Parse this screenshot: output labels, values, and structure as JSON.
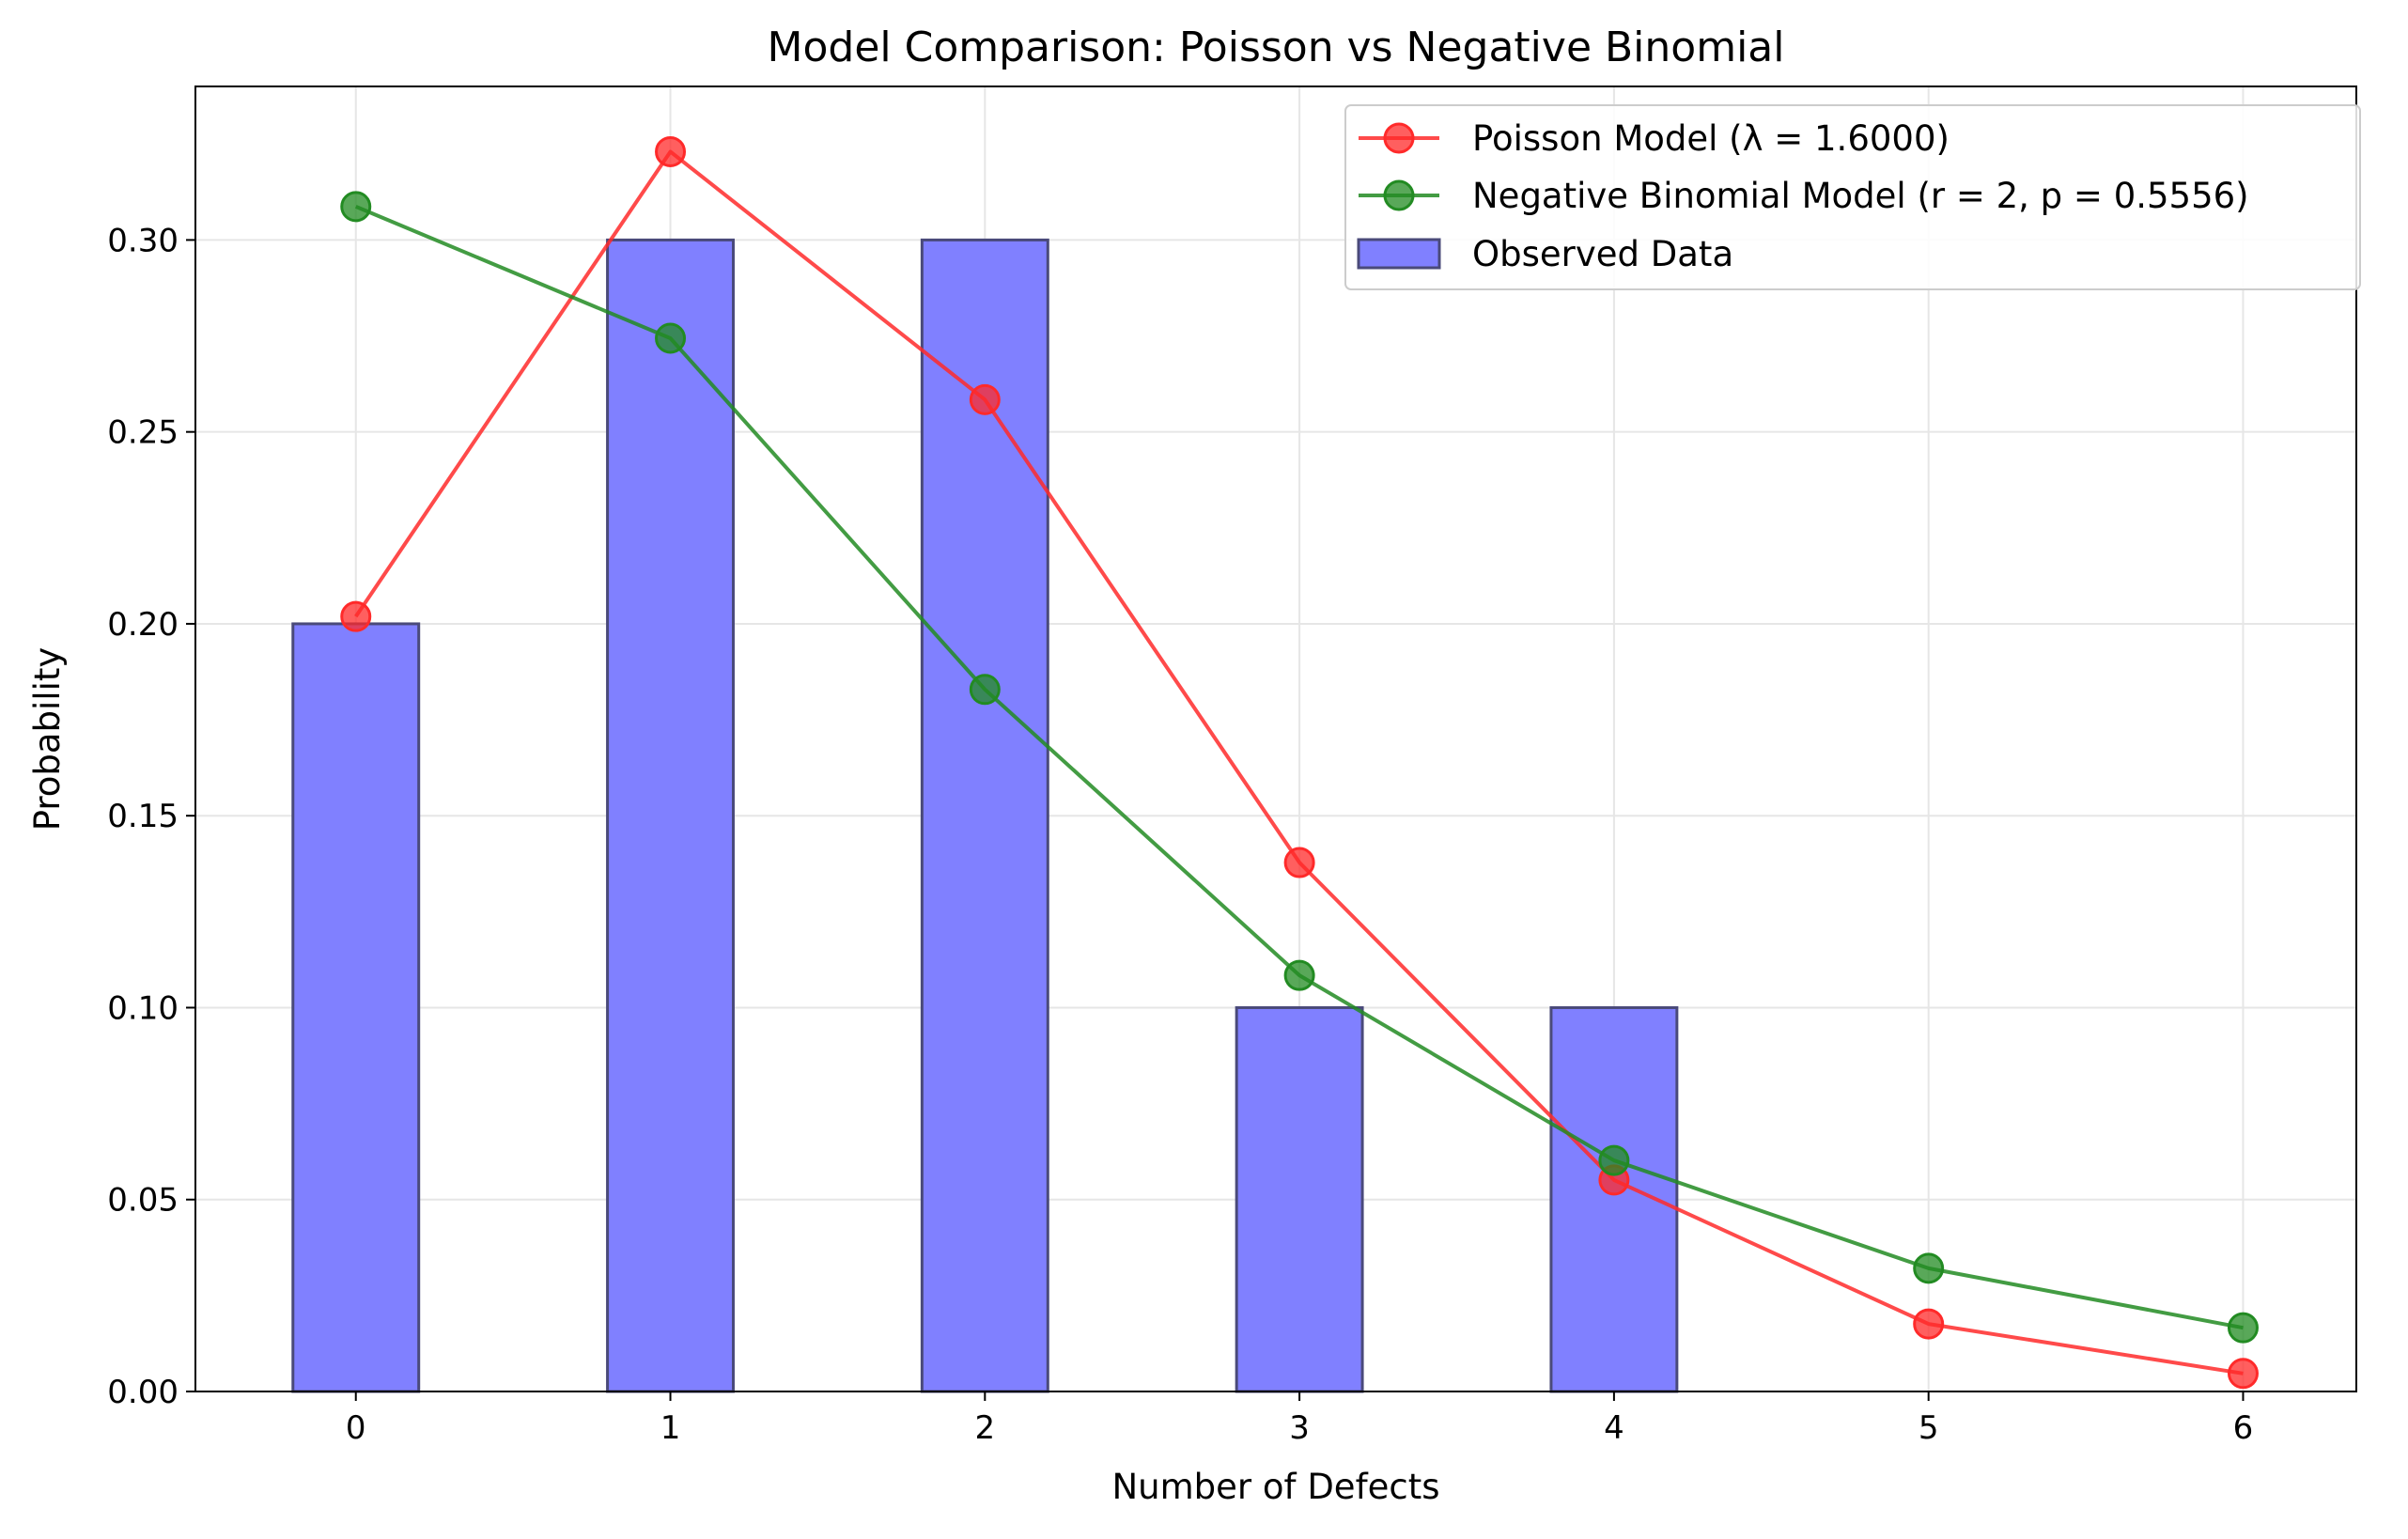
{
  "chart_data": {
    "type": "bar",
    "title": "Model Comparison: Poisson vs Negative Binomial",
    "xlabel": "Number of Defects",
    "ylabel": "Probability",
    "xlim": [
      -0.51,
      6.36
    ],
    "ylim": [
      0,
      0.34
    ],
    "grid": true,
    "legend_position": "top-right",
    "x_ticks": [
      "0",
      "1",
      "2",
      "3",
      "4",
      "5",
      "6"
    ],
    "y_ticks": [
      "0.00",
      "0.05",
      "0.10",
      "0.15",
      "0.20",
      "0.25",
      "0.30"
    ],
    "bars": {
      "name": "Observed Data",
      "color": "#8080ff",
      "edge_color": "#4a4a7a",
      "x": [
        0,
        1,
        2,
        3,
        4
      ],
      "values": [
        0.2,
        0.3,
        0.3,
        0.1,
        0.1
      ]
    },
    "series": [
      {
        "name": "Poisson Model (λ = 1.6000)",
        "type": "line",
        "color": "#ff2a2a",
        "x": [
          0,
          1,
          2,
          3,
          4,
          5,
          6
        ],
        "values": [
          0.2019,
          0.323,
          0.2584,
          0.1378,
          0.0551,
          0.0176,
          0.0047
        ]
      },
      {
        "name": "Negative Binomial Model (r = 2, p = 0.5556)",
        "type": "line",
        "color": "#228b22",
        "x": [
          0,
          1,
          2,
          3,
          4,
          5,
          6
        ],
        "values": [
          0.3087,
          0.2744,
          0.1829,
          0.1084,
          0.0602,
          0.0321,
          0.0166
        ]
      }
    ]
  }
}
